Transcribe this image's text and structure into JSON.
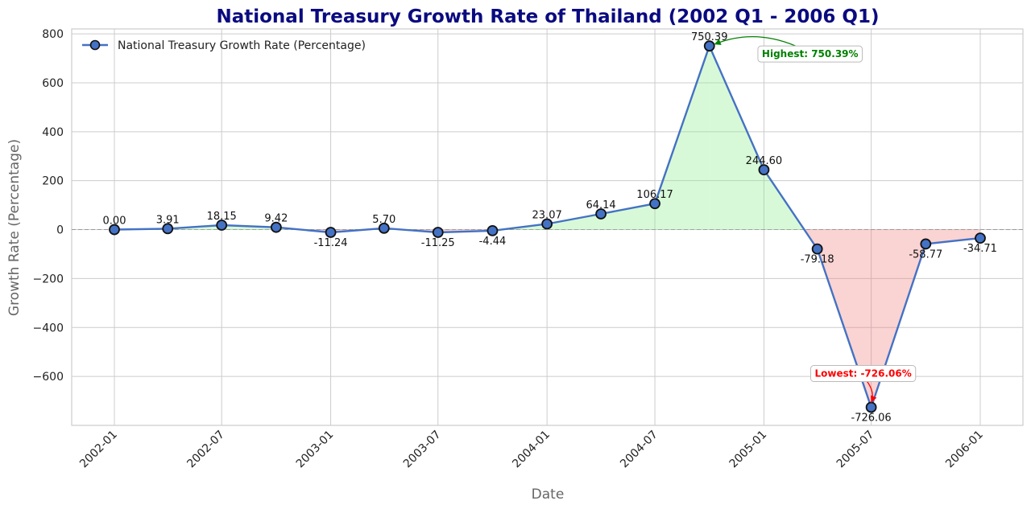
{
  "chart_data": {
    "type": "line",
    "title": "National Treasury Growth Rate of Thailand (2002 Q1 - 2006 Q1)",
    "xlabel": "Date",
    "ylabel": "Growth Rate (Percentage)",
    "ylim": [
      -800,
      820
    ],
    "yticks": [
      -600,
      -400,
      -200,
      0,
      200,
      400,
      600,
      800
    ],
    "ytick_labels": [
      "−600",
      "−400",
      "−200",
      "0",
      "200",
      "400",
      "600",
      "800"
    ],
    "xticks": [
      "2002-01",
      "2002-07",
      "2003-01",
      "2003-07",
      "2004-01",
      "2004-07",
      "2005-01",
      "2005-07",
      "2006-01"
    ],
    "grid": true,
    "legend_position": "top-left",
    "series": [
      {
        "name": "National Treasury Growth Rate (Percentage)",
        "x": [
          "2002-01",
          "2002-04",
          "2002-07",
          "2002-10",
          "2003-01",
          "2003-04",
          "2003-07",
          "2003-10",
          "2004-01",
          "2004-04",
          "2004-07",
          "2004-10",
          "2005-01",
          "2005-04",
          "2005-07",
          "2005-10",
          "2006-01"
        ],
        "values": [
          0.0,
          3.91,
          18.15,
          9.42,
          -11.24,
          5.7,
          -11.25,
          -4.44,
          23.07,
          64.14,
          106.17,
          750.39,
          244.6,
          -79.18,
          -726.06,
          -58.77,
          -34.71
        ],
        "labels": [
          "0.00",
          "3.91",
          "18.15",
          "9.42",
          "-11.24",
          "5.70",
          "-11.25",
          "-4.44",
          "23.07",
          "64.14",
          "106.17",
          "750.39",
          "244.60",
          "-79.18",
          "-726.06",
          "-58.77",
          "-34.71"
        ]
      }
    ],
    "annotations": {
      "highest": {
        "text": "Highest: 750.39%",
        "index": 11
      },
      "lowest": {
        "text": "Lowest: -726.06%",
        "index": 14
      }
    },
    "colors": {
      "title": "#0a0a80",
      "line": "#4472c4",
      "marker_edge": "#111111",
      "positive_fill": "#90ee90",
      "negative_fill": "#f08080",
      "highest": "#008000",
      "lowest": "#ff0000",
      "grid": "#cccccc",
      "zero_line": "#999999"
    }
  }
}
